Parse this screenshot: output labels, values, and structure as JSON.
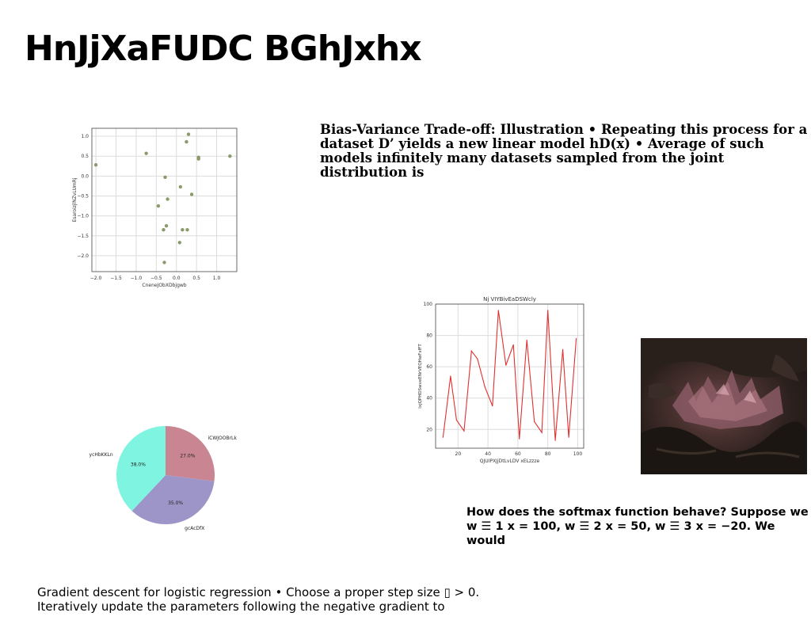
{
  "slide": {
    "title": "HnJjXaFUDC BGhJxhx",
    "bias_variance_text": "Bias-Variance Trade-off: Illustration • Repeating this process for a dataset D’ yields a new linear model hD(x) • Average of such models infinitely many datasets sampled from the joint distribution is",
    "softmax_text": "How does the softmax function behave? Suppose we w ☰ 1 x = 100, w ☰ 2 x = 50, w ☰ 3 x = −20. We would",
    "gradient_text": "Gradient descent for logistic regression • Choose a proper step size ▯ > 0. Iteratively update the parameters following the negative gradient to"
  },
  "chart_data": [
    {
      "type": "scatter",
      "title": "",
      "xlabel": "CneneJObXDbjgwb",
      "ylabel": "EsaroizjlNZvLUmRj",
      "xlim": [
        -2.1,
        1.5
      ],
      "ylim": [
        -2.4,
        1.2
      ],
      "xticks": [
        -2.0,
        -1.5,
        -1.0,
        -0.5,
        0.0,
        0.5,
        1.0
      ],
      "yticks": [
        1.0,
        0.5,
        0.0,
        -0.5,
        -1.0,
        -1.5,
        -2.0
      ],
      "grid": true,
      "color": "#8a9a6a",
      "points": [
        {
          "x": -2.0,
          "y": 0.28
        },
        {
          "x": -0.75,
          "y": 0.57
        },
        {
          "x": 0.3,
          "y": 1.05
        },
        {
          "x": 0.25,
          "y": 0.86
        },
        {
          "x": 0.55,
          "y": 0.47
        },
        {
          "x": 0.55,
          "y": 0.43
        },
        {
          "x": 1.33,
          "y": 0.5
        },
        {
          "x": -0.28,
          "y": -0.03
        },
        {
          "x": 0.1,
          "y": -0.27
        },
        {
          "x": 0.38,
          "y": -0.46
        },
        {
          "x": -0.22,
          "y": -0.58
        },
        {
          "x": -0.45,
          "y": -0.75
        },
        {
          "x": -0.25,
          "y": -1.25
        },
        {
          "x": -0.32,
          "y": -1.35
        },
        {
          "x": 0.15,
          "y": -1.35
        },
        {
          "x": 0.27,
          "y": -1.35
        },
        {
          "x": 0.08,
          "y": -1.67
        },
        {
          "x": -0.3,
          "y": -2.17
        }
      ]
    },
    {
      "type": "line",
      "title": "Nj VIYBivEaDSWcly",
      "xlabel": "QJUIPXJjDtLvLDV xELzzze",
      "ylabel": "lxjQPHDSwveENrVEQHwFsfFT",
      "xlim": [
        5,
        104
      ],
      "ylim": [
        8,
        100
      ],
      "xticks": [
        20,
        40,
        60,
        80,
        100
      ],
      "yticks": [
        100,
        80,
        60,
        40,
        20
      ],
      "grid": true,
      "color": "#e03030",
      "x": [
        10,
        15,
        19,
        24,
        29,
        33,
        38,
        43,
        47,
        52,
        57,
        61,
        66,
        71,
        76,
        80,
        85,
        90,
        94,
        99
      ],
      "y": [
        15,
        54,
        26,
        19,
        70,
        65,
        47,
        35,
        96,
        61,
        74,
        14,
        77,
        25,
        18,
        96,
        13,
        71,
        15,
        78
      ]
    },
    {
      "type": "pie",
      "title": "",
      "slices": [
        {
          "label": "iCWJOOBrLk",
          "value": 27.0,
          "pct": "27.0%",
          "color": "#c98591"
        },
        {
          "label": "gcAcDfX",
          "value": 35.0,
          "pct": "35.0%",
          "color": "#9d95c8"
        },
        {
          "label": "ycHbKKLn",
          "value": 38.0,
          "pct": "38.0%",
          "color": "#7ff5e1"
        }
      ]
    }
  ]
}
